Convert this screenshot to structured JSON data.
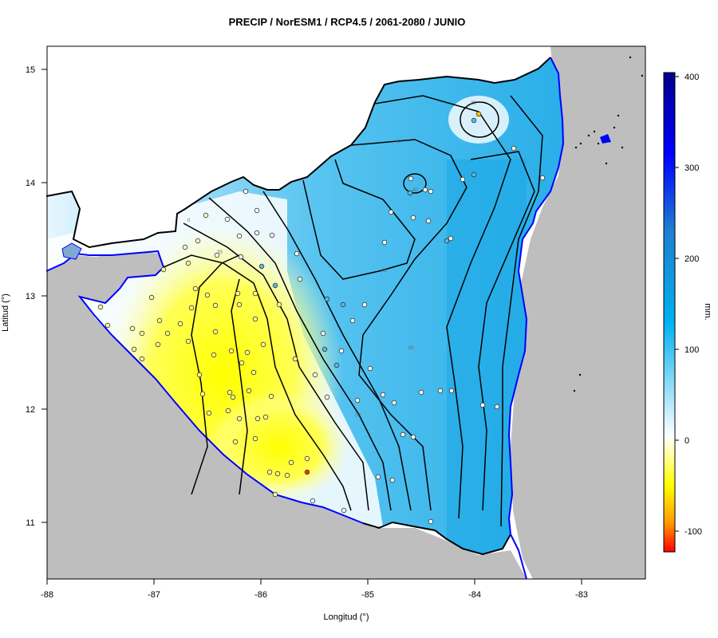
{
  "title": "PRECIP / NorESM1 / RCP4.5 / 2061-2080 / JUNIO",
  "x_axis": {
    "label": "Longitud (°)",
    "ticks": [
      "-88",
      "-87",
      "-86",
      "-85",
      "-84",
      "-83"
    ]
  },
  "y_axis": {
    "label": "Latitud (°)",
    "ticks": [
      "11",
      "12",
      "13",
      "14",
      "15"
    ]
  },
  "colorbar": {
    "unit": "mm.",
    "ticks": [
      "400",
      "300",
      "200",
      "100",
      "0",
      "-100"
    ],
    "colors": [
      "#00008b",
      "#0000ff",
      "#1e90ff",
      "#00bfff",
      "#ffffff",
      "#ffff00",
      "#ff8c00",
      "#ff0000"
    ]
  },
  "contour_labels": [
    "20",
    "60",
    "80",
    "40",
    "80",
    "20",
    "0",
    "20"
  ],
  "colors": {
    "background_land": "#bebebe",
    "sea": "#bebebe",
    "coastline": "#0000ff",
    "border": "#000000"
  }
}
